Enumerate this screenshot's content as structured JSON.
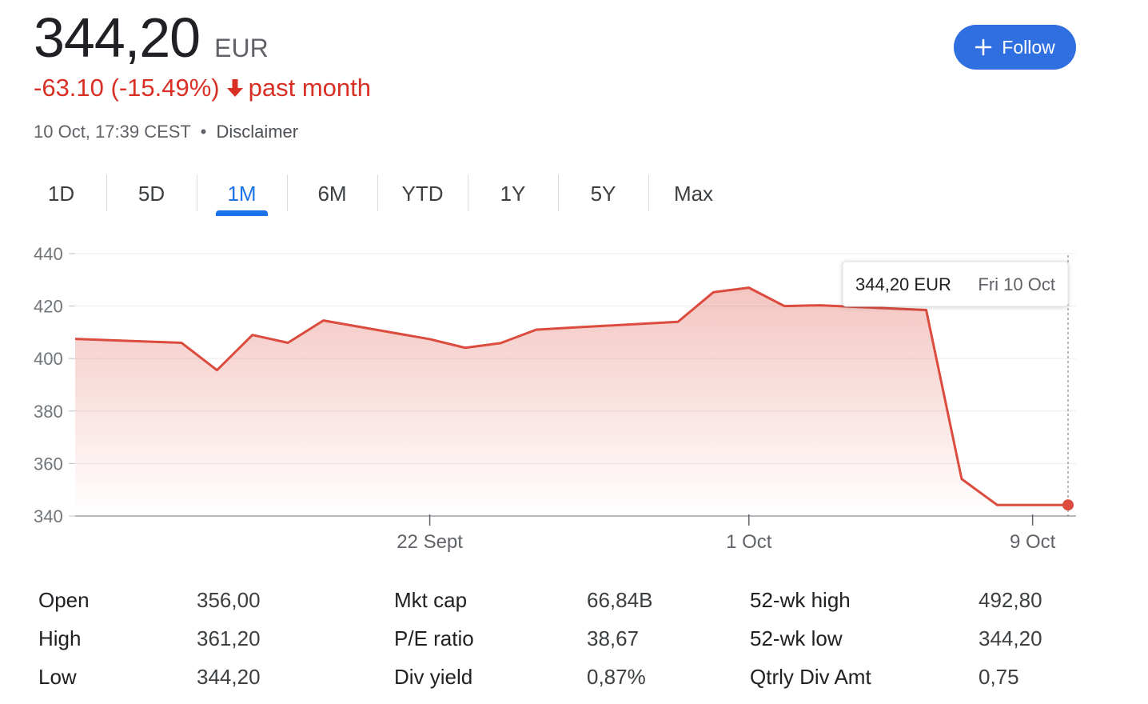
{
  "header": {
    "price": "344,20",
    "currency": "EUR",
    "change": "-63.10 (-15.49%)",
    "period": "past month",
    "timestamp": "10 Oct, 17:39 CEST",
    "separator": "•",
    "disclaimer": "Disclaimer",
    "follow_label": "Follow"
  },
  "colors": {
    "negative": "#d93025",
    "accent": "#1a73e8",
    "button": "#2f6fe0",
    "line": "#db4b3e"
  },
  "icons": {
    "change_direction": "arrow-down-icon",
    "follow": "plus-icon"
  },
  "tabs": [
    {
      "label": "1D",
      "active": false
    },
    {
      "label": "5D",
      "active": false
    },
    {
      "label": "1M",
      "active": true
    },
    {
      "label": "6M",
      "active": false
    },
    {
      "label": "YTD",
      "active": false
    },
    {
      "label": "1Y",
      "active": false
    },
    {
      "label": "5Y",
      "active": false
    },
    {
      "label": "Max",
      "active": false
    }
  ],
  "chart_data": {
    "type": "area",
    "title": "",
    "xlabel": "",
    "ylabel": "",
    "ylim": [
      340,
      440
    ],
    "y_ticks": [
      "440",
      "420",
      "400",
      "380",
      "360",
      "340"
    ],
    "x_tick_labels": [
      {
        "label": "22 Sept",
        "date": "2025-09-22"
      },
      {
        "label": "1 Oct",
        "date": "2025-10-01"
      },
      {
        "label": "9 Oct",
        "date": "2025-10-09"
      }
    ],
    "grid": true,
    "legend": "none",
    "series": [
      {
        "x": [
          "2025-09-12",
          "2025-09-15",
          "2025-09-16",
          "2025-09-17",
          "2025-09-18",
          "2025-09-19",
          "2025-09-22",
          "2025-09-23",
          "2025-09-24",
          "2025-09-25",
          "2025-09-26",
          "2025-09-29",
          "2025-09-30",
          "2025-10-01",
          "2025-10-02",
          "2025-10-03",
          "2025-10-06",
          "2025-10-07",
          "2025-10-08",
          "2025-10-09",
          "2025-10-10"
        ],
        "values": [
          407.5,
          406,
          395.6,
          409,
          406,
          414.5,
          407.4,
          404.1,
          405.9,
          411,
          411.8,
          414,
          425.3,
          427,
          420,
          420.3,
          418.5,
          354.1,
          344.2,
          344.2,
          344.2
        ]
      }
    ],
    "tooltip": {
      "value": "344,20 EUR",
      "date": "Fri 10 Oct"
    }
  },
  "stats": [
    [
      {
        "label": "Open",
        "value": "356,00"
      },
      {
        "label": "High",
        "value": "361,20"
      },
      {
        "label": "Low",
        "value": "344,20"
      }
    ],
    [
      {
        "label": "Mkt cap",
        "value": "66,84B"
      },
      {
        "label": "P/E ratio",
        "value": "38,67"
      },
      {
        "label": "Div yield",
        "value": "0,87%"
      }
    ],
    [
      {
        "label": "52-wk high",
        "value": "492,80"
      },
      {
        "label": "52-wk low",
        "value": "344,20"
      },
      {
        "label": "Qtrly Div Amt",
        "value": "0,75"
      }
    ]
  ]
}
